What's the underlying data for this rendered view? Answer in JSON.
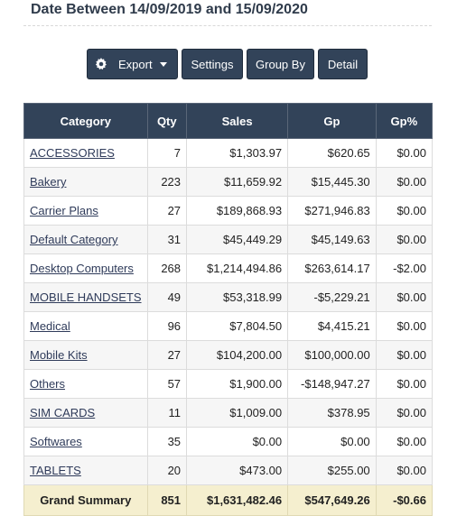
{
  "header": {
    "title": "Date Between 14/09/2019 and 15/09/2020"
  },
  "toolbar": {
    "export_label": "Export",
    "settings_label": "Settings",
    "groupby_label": "Group By",
    "detail_label": "Detail"
  },
  "table": {
    "columns": [
      "Category",
      "Qty",
      "Sales",
      "Gp",
      "Gp%"
    ],
    "rows": [
      {
        "category": "ACCESSORIES",
        "qty": "7",
        "sales": "$1,303.97",
        "gp": "$620.65",
        "gp_pct": "$0.00"
      },
      {
        "category": "Bakery",
        "qty": "223",
        "sales": "$11,659.92",
        "gp": "$15,445.30",
        "gp_pct": "$0.00"
      },
      {
        "category": "Carrier Plans",
        "qty": "27",
        "sales": "$189,868.93",
        "gp": "$271,946.83",
        "gp_pct": "$0.00"
      },
      {
        "category": "Default Category",
        "qty": "31",
        "sales": "$45,449.29",
        "gp": "$45,149.63",
        "gp_pct": "$0.00"
      },
      {
        "category": "Desktop Computers",
        "qty": "268",
        "sales": "$1,214,494.86",
        "gp": "$263,614.17",
        "gp_pct": "-$2.00"
      },
      {
        "category": "MOBILE HANDSETS",
        "qty": "49",
        "sales": "$53,318.99",
        "gp": "-$5,229.21",
        "gp_pct": "$0.00"
      },
      {
        "category": "Medical",
        "qty": "96",
        "sales": "$7,804.50",
        "gp": "$4,415.21",
        "gp_pct": "$0.00"
      },
      {
        "category": "Mobile Kits",
        "qty": "27",
        "sales": "$104,200.00",
        "gp": "$100,000.00",
        "gp_pct": "$0.00"
      },
      {
        "category": "Others",
        "qty": "57",
        "sales": "$1,900.00",
        "gp": "-$148,947.27",
        "gp_pct": "$0.00"
      },
      {
        "category": "SIM CARDS",
        "qty": "11",
        "sales": "$1,009.00",
        "gp": "$378.95",
        "gp_pct": "$0.00"
      },
      {
        "category": "Softwares",
        "qty": "35",
        "sales": "$0.00",
        "gp": "$0.00",
        "gp_pct": "$0.00"
      },
      {
        "category": "TABLETS",
        "qty": "20",
        "sales": "$473.00",
        "gp": "$255.00",
        "gp_pct": "$0.00"
      }
    ],
    "summary": {
      "label": "Grand Summary",
      "qty": "851",
      "sales": "$1,631,482.46",
      "gp": "$547,649.26",
      "gp_pct": "-$0.66"
    }
  },
  "icons": {
    "export": "gear-icon",
    "export_caret": "caret-down-icon"
  },
  "colors": {
    "button_bg": "#324359",
    "header_bg": "#324359",
    "summary_bg": "#f5efcf"
  }
}
